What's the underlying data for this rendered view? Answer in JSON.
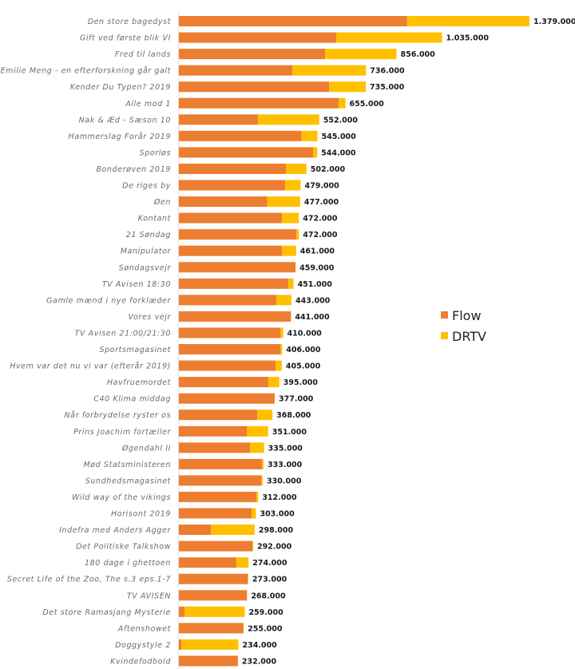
{
  "chart_data": {
    "type": "bar",
    "orientation": "horizontal",
    "stacked": true,
    "title": "",
    "xlabel": "",
    "ylabel": "",
    "grid": false,
    "legend_position": "right",
    "colors": {
      "Flow": "#ed7d31",
      "DRTV": "#ffc000"
    },
    "xlim": [
      0,
      1379000
    ],
    "categories": [
      "Den store bagedyst",
      "Gift ved første blik VI",
      "Fred til lands",
      "Emilie Meng - en efterforskning går galt",
      "Kender Du Typen? 2019",
      "Alle mod 1",
      "Nak & Æd - Sæson 10",
      "Hammerslag Forår 2019",
      "Sporløs",
      "Bonderøven 2019",
      "De riges by",
      "Øen",
      "Kontant",
      "21 Søndag",
      "Manipulator",
      "Søndagsvejr",
      "TV Avisen 18:30",
      "Gamle mænd i nye forklæder",
      "Vores vejr",
      "TV Avisen 21:00/21:30",
      "Sportsmagasinet",
      "Hvem var det nu vi var (efterår 2019)",
      "Havfruemordet",
      "C40 Klima middag",
      "Når forbrydelse ryster os",
      "Prins Joachim fortæller",
      "Øgendahl II",
      "Mød Statsministeren",
      "Sundhedsmagasinet",
      "Wild way of the vikings",
      "Horisont 2019",
      "Indefra med Anders Agger",
      "Det Politiske Talkshow",
      "180 dage i ghettoen",
      "Secret Life of the Zoo, The s.3 eps.1-7",
      "TV AVISEN",
      "Det store Ramasjang Mysterie",
      "Aftenshowet",
      "Doggystyle 2",
      "Kvindefodbold"
    ],
    "series": [
      {
        "name": "Flow",
        "values": [
          898000,
          619000,
          575000,
          446000,
          591000,
          628000,
          311000,
          483000,
          528000,
          421000,
          418000,
          348000,
          406000,
          462000,
          406000,
          459000,
          431000,
          383000,
          441000,
          399000,
          399000,
          381000,
          352000,
          377000,
          308000,
          267000,
          280000,
          327000,
          324000,
          305000,
          286000,
          126000,
          289000,
          226000,
          271000,
          268000,
          22000,
          253000,
          10000,
          232000
        ]
      },
      {
        "name": "DRTV",
        "values": [
          481000,
          416000,
          281000,
          290000,
          144000,
          27000,
          241000,
          62000,
          16000,
          81000,
          61000,
          129000,
          66000,
          10000,
          55000,
          0,
          20000,
          60000,
          0,
          11000,
          7000,
          24000,
          43000,
          0,
          60000,
          84000,
          55000,
          6000,
          6000,
          7000,
          17000,
          172000,
          3000,
          48000,
          2000,
          0,
          237000,
          2000,
          224000,
          0
        ]
      }
    ],
    "totals": [
      1379000,
      1035000,
      856000,
      736000,
      735000,
      655000,
      552000,
      545000,
      544000,
      502000,
      479000,
      477000,
      472000,
      472000,
      461000,
      459000,
      451000,
      443000,
      441000,
      410000,
      406000,
      405000,
      395000,
      377000,
      368000,
      351000,
      335000,
      333000,
      330000,
      312000,
      303000,
      298000,
      292000,
      274000,
      273000,
      268000,
      259000,
      255000,
      234000,
      232000
    ],
    "total_labels": [
      "1.379.000",
      "1.035.000",
      "856.000",
      "736.000",
      "735.000",
      "655.000",
      "552.000",
      "545.000",
      "544.000",
      "502.000",
      "479.000",
      "477.000",
      "472.000",
      "472.000",
      "461.000",
      "459.000",
      "451.000",
      "443.000",
      "441.000",
      "410.000",
      "406.000",
      "405.000",
      "395.000",
      "377.000",
      "368.000",
      "351.000",
      "335.000",
      "333.000",
      "330.000",
      "312.000",
      "303.000",
      "298.000",
      "292.000",
      "274.000",
      "273.000",
      "268.000",
      "259.000",
      "255.000",
      "234.000",
      "232.000"
    ],
    "legend": [
      "Flow",
      "DRTV"
    ]
  }
}
